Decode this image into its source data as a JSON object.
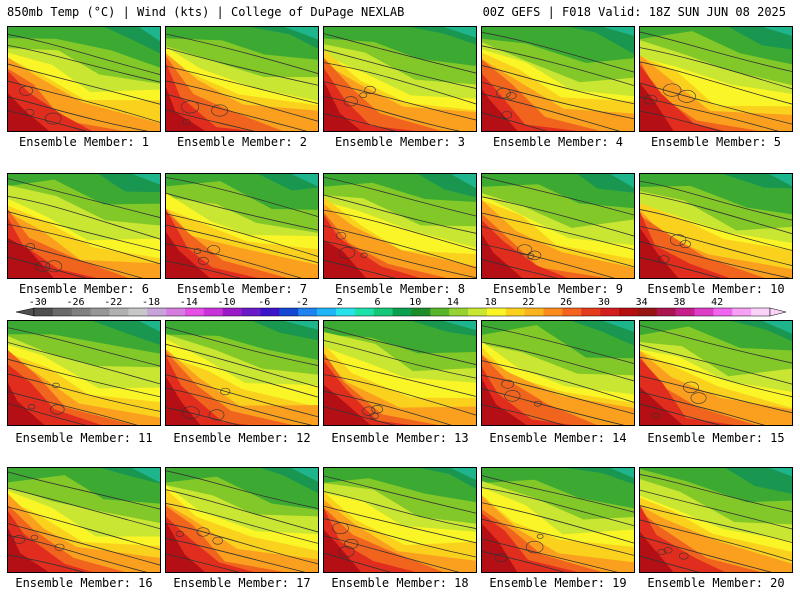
{
  "header": {
    "left": "850mb Temp (°C) | Wind (kts) | College of DuPage NEXLAB",
    "right": "00Z GEFS | F018 Valid: 18Z SUN JUN 08 2025"
  },
  "panel_label_prefix": "Ensemble Member: ",
  "members": [
    {
      "label": "Ensemble Member: 1"
    },
    {
      "label": "Ensemble Member: 2"
    },
    {
      "label": "Ensemble Member: 3"
    },
    {
      "label": "Ensemble Member: 4"
    },
    {
      "label": "Ensemble Member: 5"
    },
    {
      "label": "Ensemble Member: 6"
    },
    {
      "label": "Ensemble Member: 7"
    },
    {
      "label": "Ensemble Member: 8"
    },
    {
      "label": "Ensemble Member: 9"
    },
    {
      "label": "Ensemble Member: 10"
    },
    {
      "label": "Ensemble Member: 11"
    },
    {
      "label": "Ensemble Member: 12"
    },
    {
      "label": "Ensemble Member: 13"
    },
    {
      "label": "Ensemble Member: 14"
    },
    {
      "label": "Ensemble Member: 15"
    },
    {
      "label": "Ensemble Member: 16"
    },
    {
      "label": "Ensemble Member: 17"
    },
    {
      "label": "Ensemble Member: 18"
    },
    {
      "label": "Ensemble Member: 19"
    },
    {
      "label": "Ensemble Member: 20"
    }
  ],
  "colorbar": {
    "tick_labels": [
      "-30",
      "-26",
      "-22",
      "-18",
      "-14",
      "-10",
      "-6",
      "-2",
      "2",
      "6",
      "10",
      "14",
      "18",
      "22",
      "26",
      "30",
      "34",
      "38",
      "42"
    ],
    "colors": [
      "#4f4f4f",
      "#6a6a6a",
      "#808080",
      "#969696",
      "#b0b0b0",
      "#c7c7c7",
      "#c9a3dc",
      "#d77de0",
      "#e64ee6",
      "#c832d8",
      "#9a1ac8",
      "#6a1ac8",
      "#3a14c8",
      "#1446d6",
      "#1e82f0",
      "#1eb4f5",
      "#28e1eb",
      "#1ee1aa",
      "#14c878",
      "#0aa050",
      "#1e8c28",
      "#58b428",
      "#96d232",
      "#c8e632",
      "#faf526",
      "#fad21e",
      "#fab41e",
      "#fa8c1e",
      "#f5641e",
      "#e63c1e",
      "#d21e1e",
      "#b40f0f",
      "#961414",
      "#aa1450",
      "#c81e8c",
      "#dc3cc8",
      "#f064f0",
      "#f5a0f5",
      "#fad2fa"
    ]
  },
  "palette": {
    "green_dark": "#199650",
    "green": "#3caa32",
    "green_light": "#82c828",
    "yellow_green": "#c8e632",
    "yellow": "#faf526",
    "orange_light": "#fad21e",
    "orange": "#faa01e",
    "red_orange": "#f0641e",
    "red": "#e12d1e",
    "dark_red": "#b40f14",
    "teal": "#1eb48c",
    "contour": "#333333"
  }
}
